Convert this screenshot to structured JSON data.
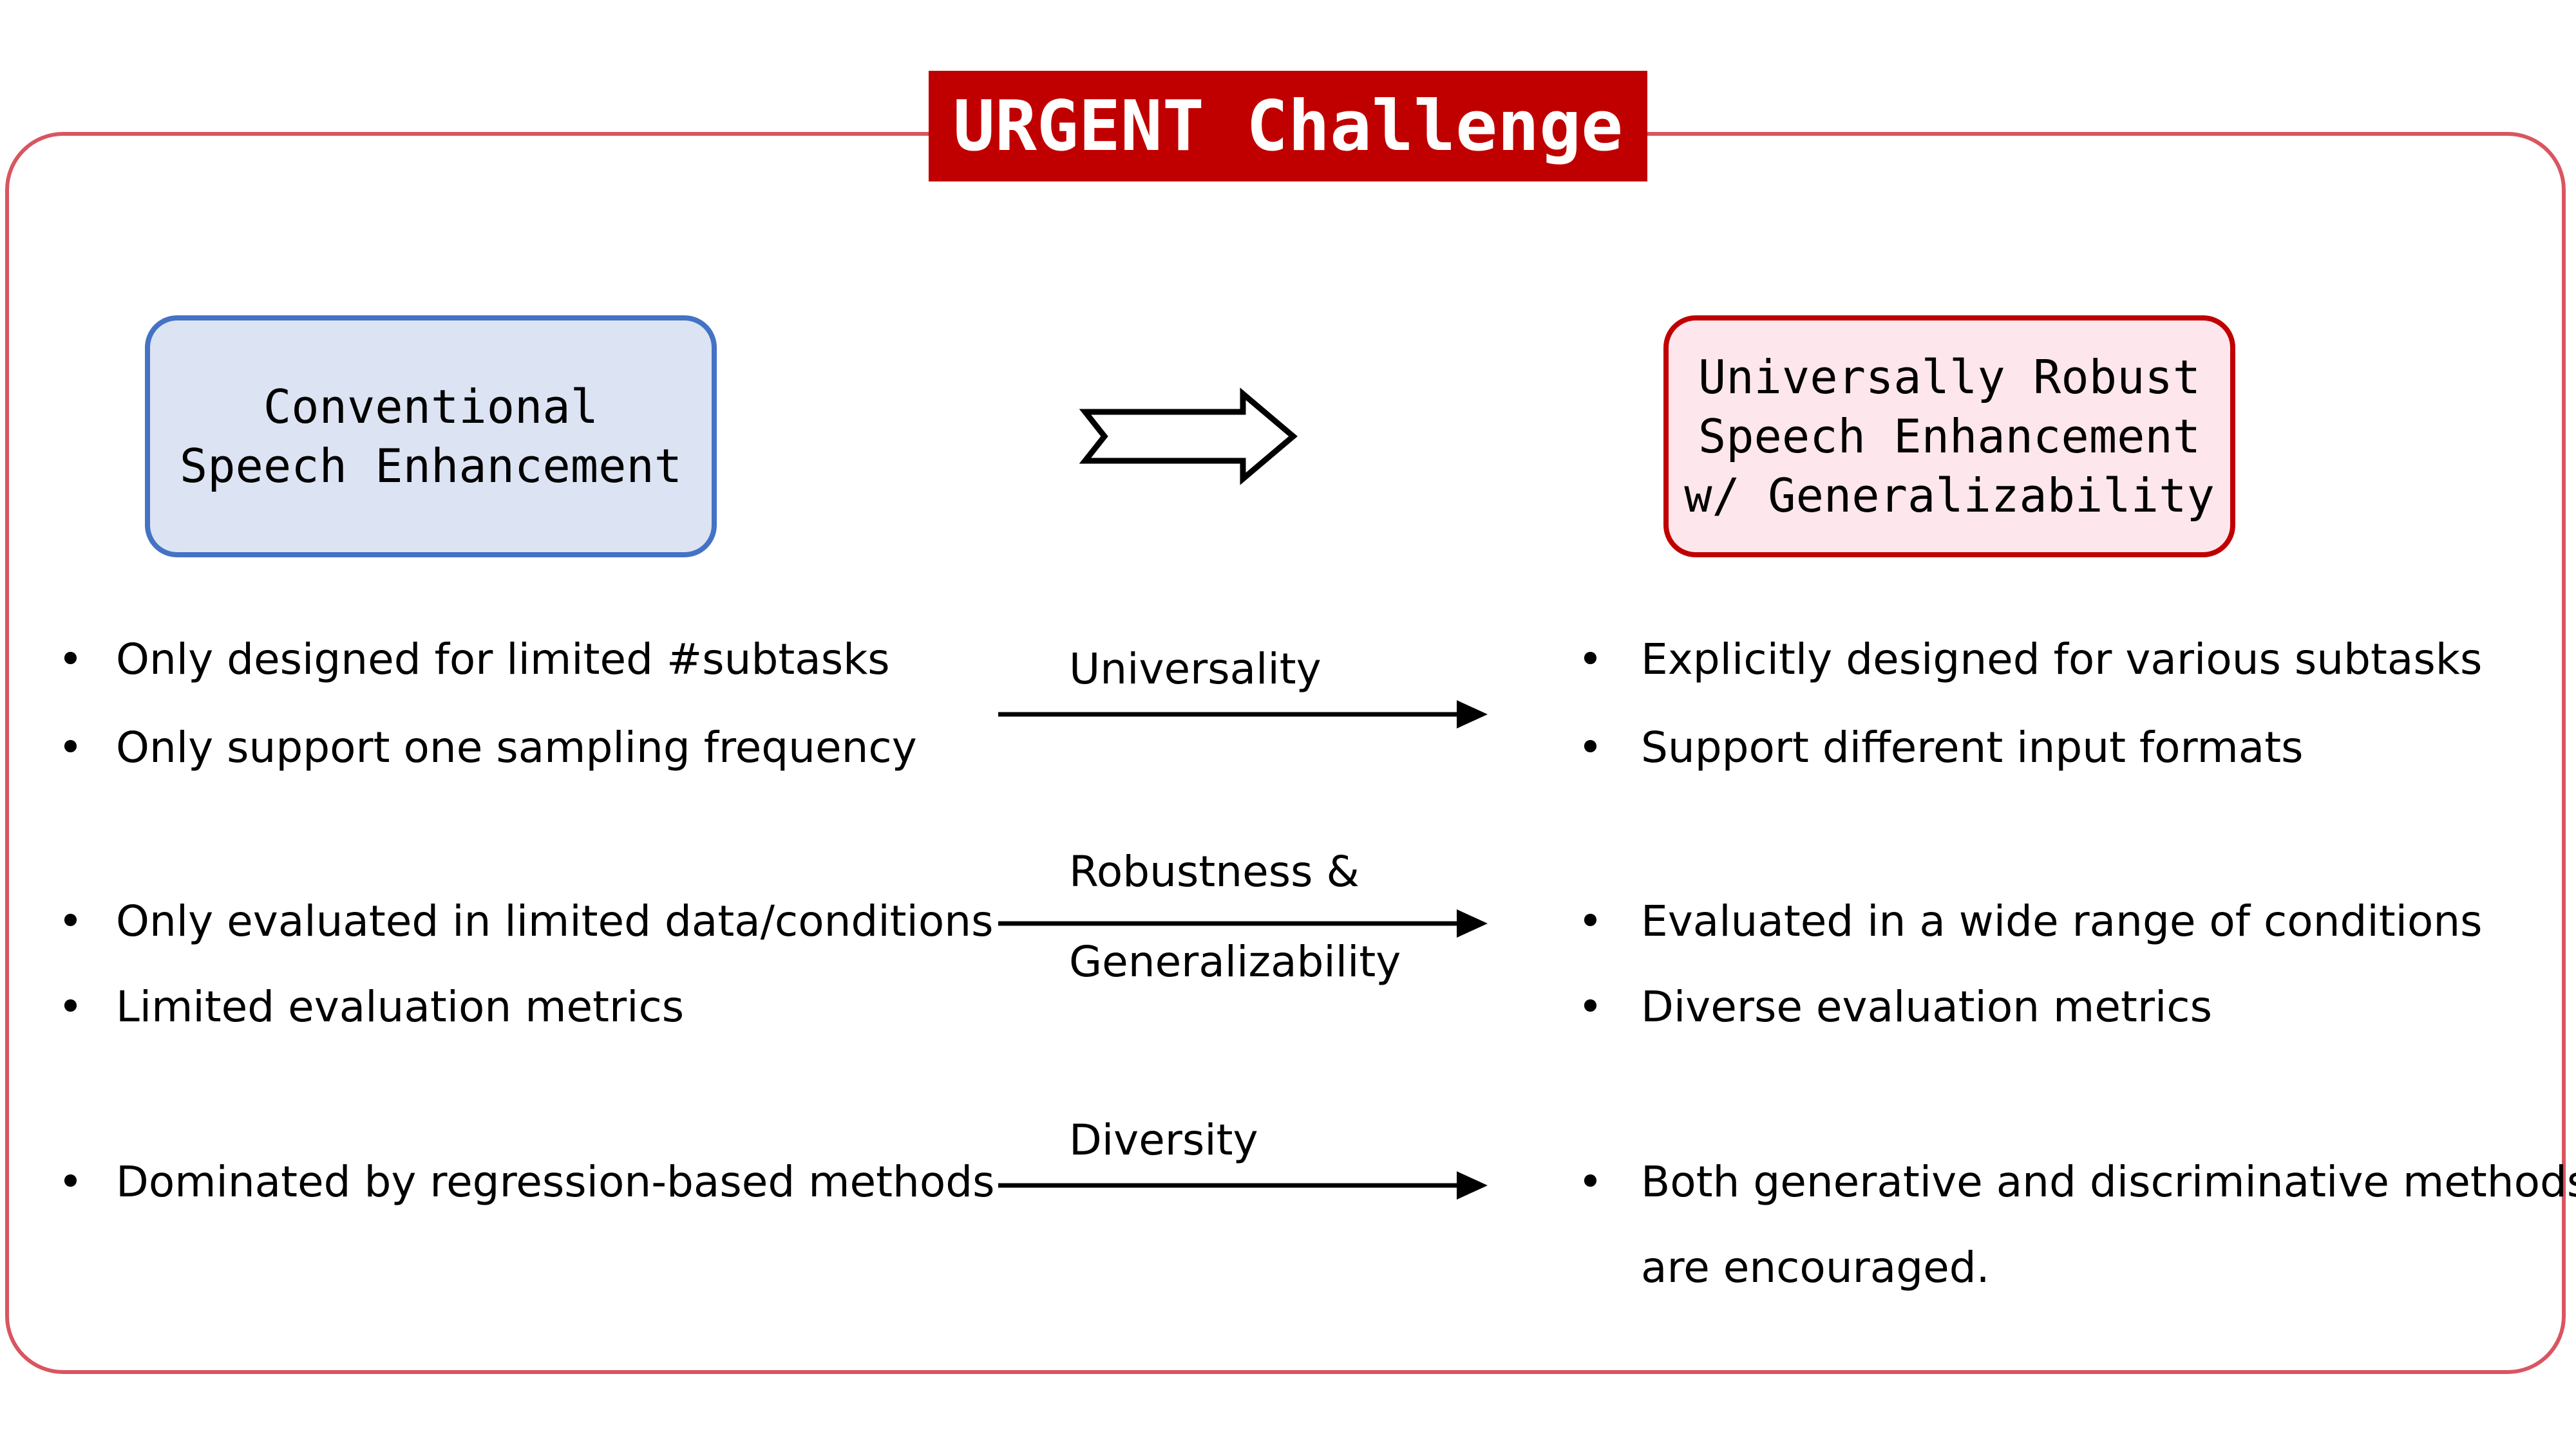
{
  "title": "URGENT Challenge",
  "left_box": {
    "line1": "Conventional",
    "line2": "Speech Enhancement"
  },
  "right_box": {
    "line1": "Universally Robust",
    "line2": "Speech Enhancement",
    "line3": "w/ Generalizability"
  },
  "bullet_char": "•",
  "left_bullets": [
    "Only designed for limited #subtasks",
    "Only support one sampling frequency",
    "Only evaluated in limited data/conditions",
    "Limited evaluation metrics",
    "Dominated by regression-based methods"
  ],
  "right_bullets": [
    "Explicitly designed for various subtasks",
    "Support different input formats",
    "Evaluated in a wide range of conditions",
    "Diverse evaluation metrics",
    "Both generative and discriminative methods"
  ],
  "right_continuation": "are encouraged.",
  "arrow_labels": {
    "universality": "Universality",
    "robustness": "Robustness &",
    "generalizability": "Generalizability",
    "diversity": "Diversity"
  },
  "colors": {
    "frame": "#d9555f",
    "title_bg": "#c00000",
    "left_box_fill": "#dce3f2",
    "left_box_border": "#4472c4",
    "right_box_fill": "#fde6ec",
    "right_box_border": "#c00000"
  }
}
